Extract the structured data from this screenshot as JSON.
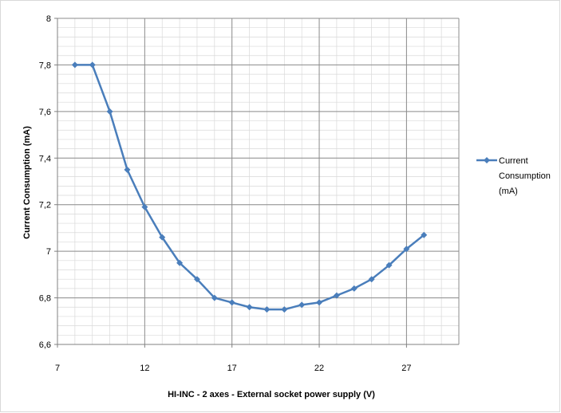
{
  "chart_data": {
    "type": "line",
    "title": "",
    "xlabel": "HI-INC - 2 axes - External socket power supply (V)",
    "ylabel": "Current Consumption (mA)",
    "xlim": [
      7,
      30
    ],
    "ylim": [
      6.6,
      8
    ],
    "xticks": [
      7,
      12,
      17,
      22,
      27
    ],
    "xtick_labels": [
      "7",
      "12",
      "17",
      "22",
      "27"
    ],
    "yticks": [
      6.6,
      6.8,
      7.0,
      7.2,
      7.4,
      7.6,
      7.8,
      8.0
    ],
    "ytick_labels": [
      "6,6",
      "6,8",
      "7",
      "7,2",
      "7,4",
      "7,6",
      "7,8",
      "8"
    ],
    "grid": true,
    "legend_position": "right",
    "series": [
      {
        "name": "Current Consumption (mA)",
        "legend_lines": [
          "Current",
          "Consumption",
          "(mA)"
        ],
        "color": "#4a7ebb",
        "x": [
          8,
          9,
          10,
          11,
          12,
          13,
          14,
          15,
          16,
          17,
          18,
          19,
          20,
          21,
          22,
          23,
          24,
          25,
          26,
          27,
          28
        ],
        "y": [
          7.8,
          7.8,
          7.6,
          7.35,
          7.19,
          7.06,
          6.95,
          6.88,
          6.8,
          6.78,
          6.76,
          6.75,
          6.75,
          6.77,
          6.78,
          6.81,
          6.84,
          6.88,
          6.94,
          7.01,
          7.07
        ]
      }
    ]
  }
}
